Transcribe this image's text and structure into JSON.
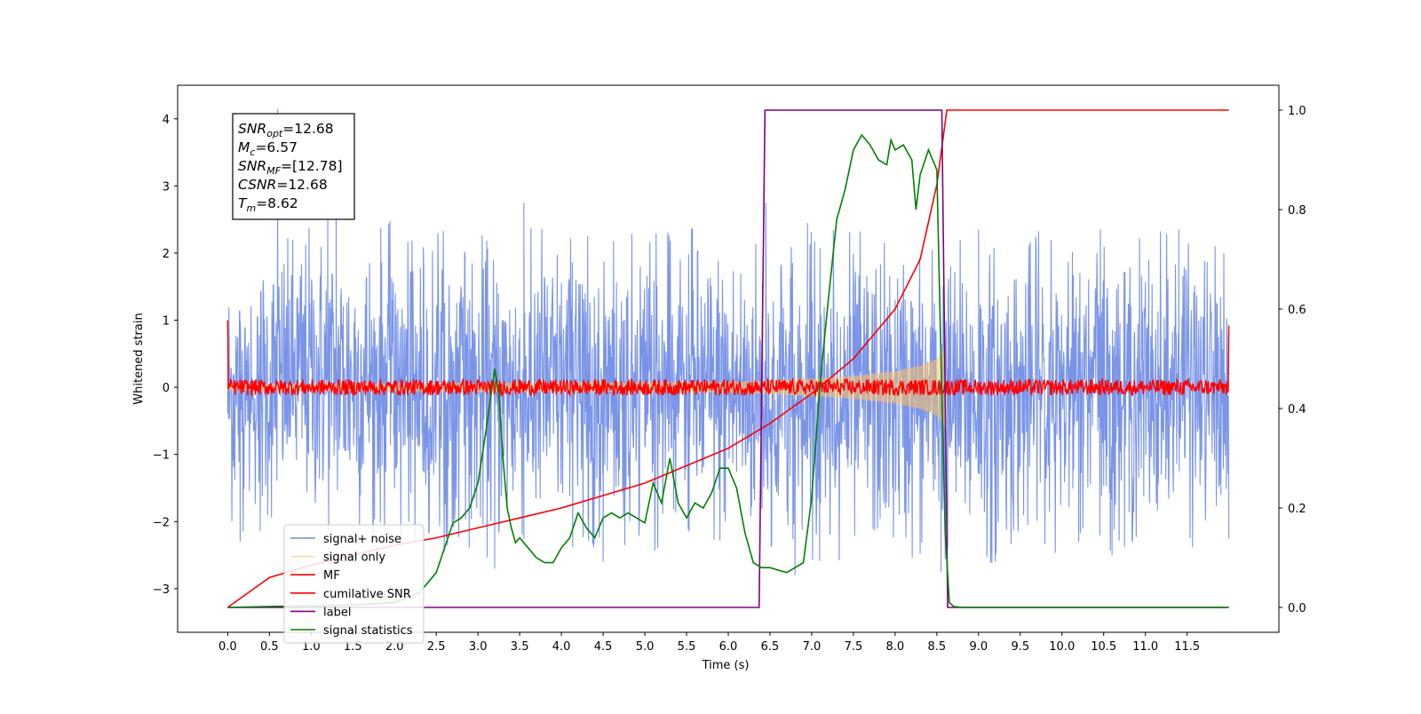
{
  "chart_data": {
    "type": "line",
    "title": "",
    "xlabel": "Time (s)",
    "ylabel": "Whitened strain",
    "xlim": [
      -0.6,
      12.6
    ],
    "ylim": [
      -3.65,
      4.5
    ],
    "y2lim": [
      -0.05,
      1.05
    ],
    "xticks": [
      0.0,
      0.5,
      1.0,
      1.5,
      2.0,
      2.5,
      3.0,
      3.5,
      4.0,
      4.5,
      5.0,
      5.5,
      6.0,
      6.5,
      7.0,
      7.5,
      8.0,
      8.5,
      9.0,
      9.5,
      10.0,
      10.5,
      11.0,
      11.5
    ],
    "xtick_labels": [
      "0.0",
      "0.5",
      "1.0",
      "1.5",
      "2.0",
      "2.5",
      "3.0",
      "3.5",
      "4.0",
      "4.5",
      "5.0",
      "5.5",
      "6.0",
      "6.5",
      "7.0",
      "7.5",
      "8.0",
      "8.5",
      "9.0",
      "9.5",
      "10.0",
      "10.5",
      "11.0",
      "11.5"
    ],
    "yticks": [
      -3,
      -2,
      -1,
      0,
      1,
      2,
      3,
      4
    ],
    "ytick_labels": [
      "−3",
      "−2",
      "−1",
      "0",
      "1",
      "2",
      "3",
      "4"
    ],
    "y2ticks": [
      0.0,
      0.2,
      0.4,
      0.6,
      0.8,
      1.0
    ],
    "y2tick_labels": [
      "0.0",
      "0.2",
      "0.4",
      "0.6",
      "0.8",
      "1.0"
    ],
    "grid": false,
    "legend_position": "lower-left",
    "annotation": {
      "lines": [
        {
          "label": "SNR",
          "sub": "opt",
          "value": "=12.68"
        },
        {
          "label": "M",
          "sub": "c",
          "value": "=6.57"
        },
        {
          "label": "SNR",
          "sub": "MF",
          "value": "=[12.78]"
        },
        {
          "label": "CSNR",
          "sub": "",
          "value": "=12.68"
        },
        {
          "label": "T",
          "sub": "m",
          "value": "=8.62"
        }
      ]
    },
    "series": [
      {
        "name": "signal+ noise",
        "color": "#6b88e6",
        "axis": "left",
        "kind": "noise",
        "envelope_t": [
          0.0,
          1.0,
          2.0,
          3.0,
          4.0,
          5.0,
          6.0,
          7.0,
          8.0,
          9.0,
          10.0,
          11.0,
          12.0
        ],
        "envelope_upper": [
          2.1,
          2.6,
          2.5,
          2.3,
          2.5,
          2.4,
          2.4,
          2.4,
          2.3,
          2.3,
          2.4,
          2.4,
          2.2
        ],
        "envelope_lower": [
          -2.3,
          -2.2,
          -2.3,
          -2.6,
          -2.5,
          -2.5,
          -2.6,
          -2.7,
          -2.7,
          -2.7,
          -2.5,
          -2.5,
          -2.3
        ],
        "peaks": [
          [
            0.6,
            4.15
          ],
          [
            1.2,
            2.65
          ],
          [
            1.3,
            2.6
          ],
          [
            3.55,
            2.75
          ],
          [
            6.45,
            2.75
          ],
          [
            6.95,
            2.45
          ],
          [
            9.0,
            2.35
          ],
          [
            11.4,
            2.35
          ],
          [
            0.15,
            -2.3
          ],
          [
            3.2,
            -2.7
          ],
          [
            4.5,
            -2.6
          ],
          [
            6.8,
            -2.8
          ],
          [
            8.55,
            -2.75
          ],
          [
            9.2,
            -2.6
          ],
          [
            10.2,
            -2.3
          ],
          [
            10.6,
            -2.5
          ]
        ]
      },
      {
        "name": "signal only",
        "color": "#ffc266",
        "axis": "left",
        "kind": "chirp",
        "amplitude_t": [
          0.0,
          2.0,
          4.0,
          6.0,
          6.5,
          7.0,
          7.5,
          8.0,
          8.3,
          8.5,
          8.6
        ],
        "amplitude": [
          0.05,
          0.06,
          0.07,
          0.08,
          0.1,
          0.13,
          0.17,
          0.24,
          0.32,
          0.42,
          0.6
        ]
      },
      {
        "name": "MF",
        "color": "#ff0000",
        "axis": "left",
        "kind": "band",
        "baseline": 0.0,
        "band": 0.12,
        "edges": [
          [
            0.0,
            1.0
          ],
          [
            12.0,
            0.92
          ]
        ]
      },
      {
        "name": "cumilative SNR",
        "color": "#ff0000",
        "axis": "right",
        "kind": "curve",
        "x": [
          0.0,
          0.5,
          1.0,
          1.5,
          2.0,
          2.5,
          3.0,
          3.5,
          4.0,
          4.5,
          5.0,
          5.5,
          6.0,
          6.5,
          7.0,
          7.5,
          8.0,
          8.3,
          8.5,
          8.62,
          9.0,
          10.0,
          11.0,
          12.0
        ],
        "y": [
          0.0,
          0.06,
          0.085,
          0.105,
          0.125,
          0.14,
          0.16,
          0.18,
          0.2,
          0.225,
          0.25,
          0.285,
          0.32,
          0.37,
          0.43,
          0.5,
          0.6,
          0.7,
          0.85,
          1.0,
          1.0,
          1.0,
          1.0,
          1.0
        ]
      },
      {
        "name": "label",
        "color": "#800080",
        "axis": "right",
        "kind": "curve",
        "x": [
          0.0,
          6.37,
          6.44,
          8.56,
          8.63,
          12.0
        ],
        "y": [
          0.0,
          0.0,
          1.0,
          1.0,
          0.0,
          0.0
        ]
      },
      {
        "name": "signal statistics",
        "color": "#008000",
        "axis": "right",
        "kind": "curve",
        "x": [
          0.0,
          0.5,
          1.0,
          1.5,
          2.0,
          2.3,
          2.5,
          2.7,
          2.8,
          2.9,
          3.0,
          3.1,
          3.15,
          3.2,
          3.25,
          3.3,
          3.35,
          3.4,
          3.45,
          3.5,
          3.6,
          3.7,
          3.8,
          3.9,
          4.0,
          4.1,
          4.2,
          4.3,
          4.4,
          4.5,
          4.6,
          4.7,
          4.8,
          4.9,
          5.0,
          5.1,
          5.2,
          5.3,
          5.4,
          5.5,
          5.6,
          5.7,
          5.8,
          5.9,
          6.0,
          6.1,
          6.2,
          6.3,
          6.4,
          6.5,
          6.6,
          6.7,
          6.8,
          6.9,
          7.0,
          7.1,
          7.2,
          7.3,
          7.4,
          7.5,
          7.6,
          7.7,
          7.8,
          7.9,
          7.95,
          8.0,
          8.1,
          8.2,
          8.25,
          8.3,
          8.4,
          8.5,
          8.55,
          8.6,
          8.65,
          8.7,
          8.8,
          9.0,
          10.0,
          11.0,
          12.0
        ],
        "y": [
          0.0,
          0.002,
          0.003,
          0.005,
          0.01,
          0.03,
          0.07,
          0.17,
          0.18,
          0.2,
          0.25,
          0.36,
          0.42,
          0.48,
          0.43,
          0.3,
          0.2,
          0.16,
          0.13,
          0.14,
          0.12,
          0.1,
          0.09,
          0.09,
          0.12,
          0.14,
          0.19,
          0.16,
          0.14,
          0.18,
          0.19,
          0.18,
          0.19,
          0.18,
          0.17,
          0.25,
          0.21,
          0.3,
          0.21,
          0.18,
          0.21,
          0.2,
          0.23,
          0.28,
          0.28,
          0.24,
          0.15,
          0.09,
          0.08,
          0.08,
          0.075,
          0.07,
          0.08,
          0.09,
          0.22,
          0.45,
          0.62,
          0.78,
          0.84,
          0.92,
          0.95,
          0.93,
          0.9,
          0.89,
          0.94,
          0.92,
          0.93,
          0.9,
          0.8,
          0.87,
          0.92,
          0.88,
          0.5,
          0.15,
          0.01,
          0.002,
          0.0,
          0.0,
          0.0,
          0.0,
          0.0
        ]
      }
    ]
  }
}
